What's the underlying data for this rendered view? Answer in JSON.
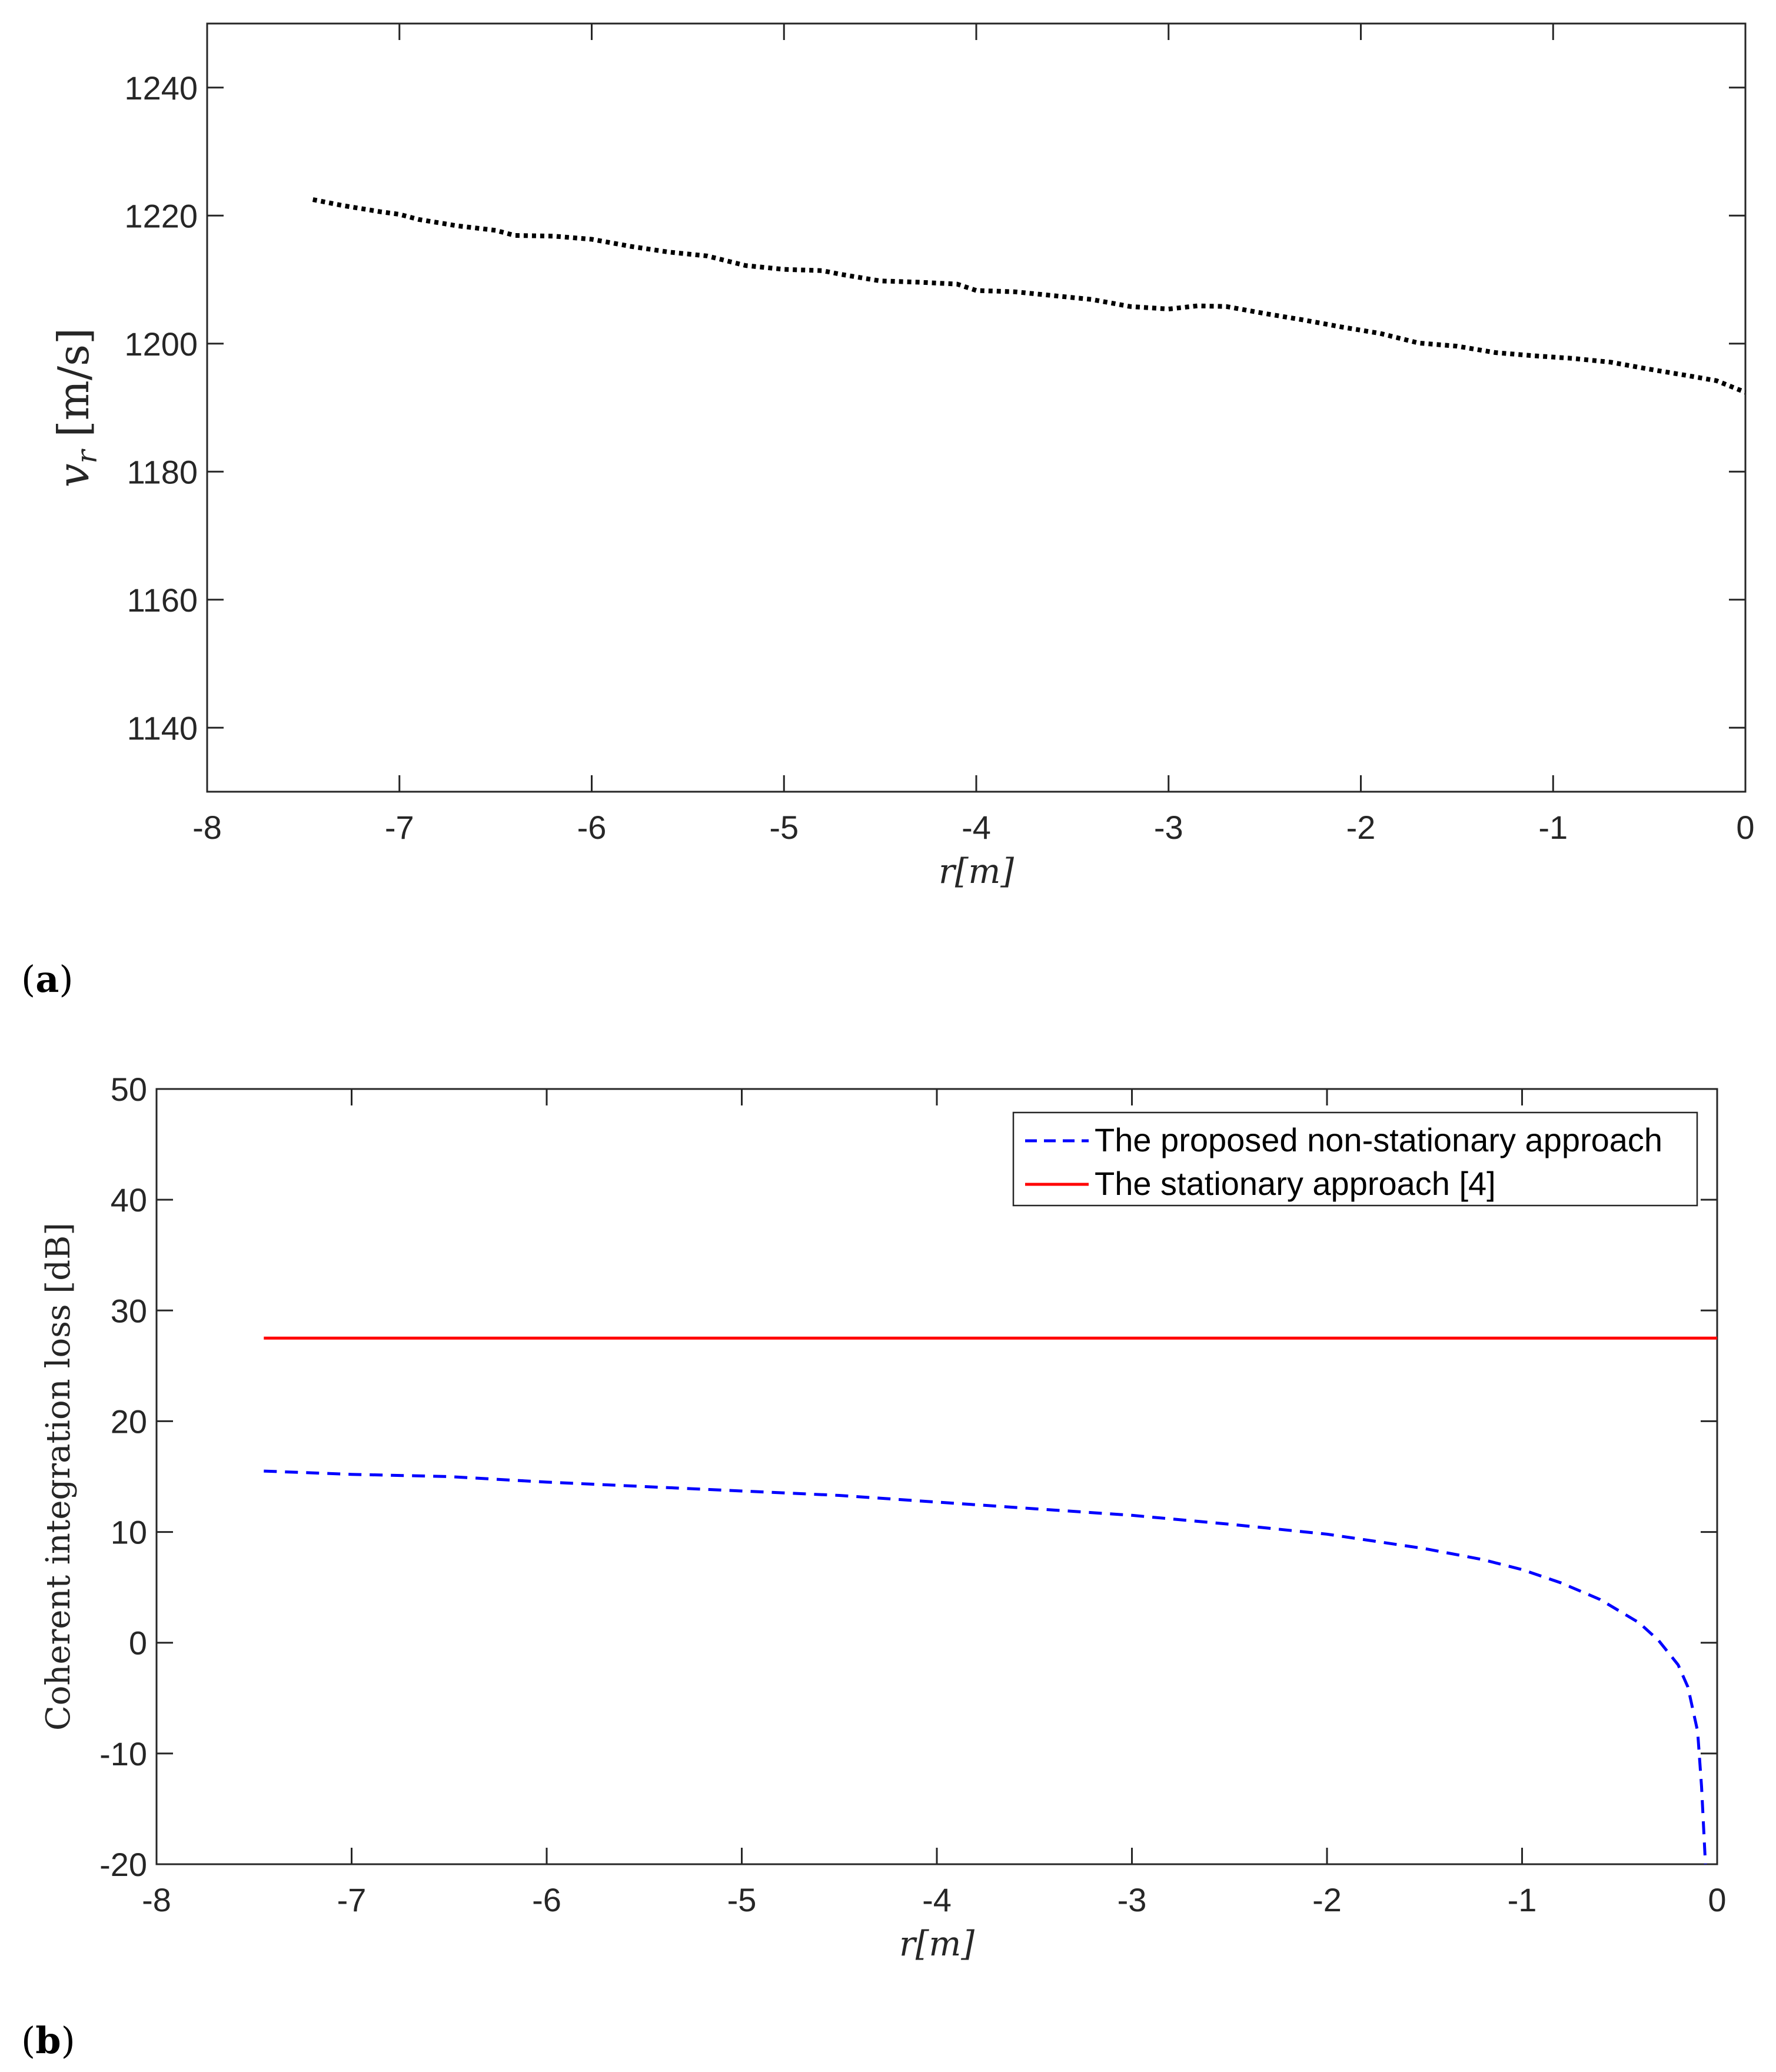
{
  "colors": {
    "axis": "#262626",
    "dotted": "#000000",
    "dashed": "#0000ff",
    "solid": "#ff0000"
  },
  "chart_data": [
    {
      "type": "line",
      "panel_label_open": "(",
      "panel_label_letter": "a",
      "panel_label_close": ")",
      "xlabel": "r[m]",
      "ylabel": "v_r [m/s]",
      "ylabel_var": "v",
      "ylabel_sub": "r",
      "ylabel_unit": "[m/s]",
      "xlim": [
        -8,
        0
      ],
      "ylim": [
        1130,
        1250
      ],
      "xticks": [
        -8,
        -7,
        -6,
        -5,
        -4,
        -3,
        -2,
        -1,
        0
      ],
      "xtick_labels": [
        "-8",
        "-7",
        "-6",
        "-5",
        "-4",
        "-3",
        "-2",
        "-1",
        "0"
      ],
      "yticks": [
        1140,
        1160,
        1180,
        1200,
        1220,
        1240
      ],
      "ytick_labels": [
        "1140",
        "1160",
        "1180",
        "1200",
        "1220",
        "1240"
      ],
      "grid": false,
      "series": [
        {
          "name": "v_r",
          "style": "dotted",
          "color": "#000000",
          "x": [
            -7.45,
            -7.3,
            -7.1,
            -7.0,
            -6.9,
            -6.7,
            -6.5,
            -6.4,
            -6.2,
            -6.0,
            -5.8,
            -5.6,
            -5.4,
            -5.2,
            -5.0,
            -4.8,
            -4.7,
            -4.5,
            -4.3,
            -4.1,
            -4.0,
            -3.8,
            -3.6,
            -3.4,
            -3.2,
            -3.0,
            -2.85,
            -2.7,
            -2.5,
            -2.3,
            -2.1,
            -1.9,
            -1.7,
            -1.5,
            -1.3,
            -1.1,
            -0.9,
            -0.7,
            -0.5,
            -0.3,
            -0.15,
            0.0
          ],
          "y": [
            1222.5,
            1221.6,
            1220.6,
            1220.2,
            1219.4,
            1218.4,
            1217.7,
            1216.9,
            1216.8,
            1216.3,
            1215.2,
            1214.3,
            1213.7,
            1212.2,
            1211.6,
            1211.4,
            1210.8,
            1209.8,
            1209.6,
            1209.3,
            1208.3,
            1208.1,
            1207.5,
            1206.9,
            1205.8,
            1205.4,
            1205.9,
            1205.8,
            1204.7,
            1203.7,
            1202.6,
            1201.6,
            1200.1,
            1199.6,
            1198.6,
            1198.1,
            1197.7,
            1197.1,
            1196.0,
            1195.0,
            1194.2,
            1192.4
          ]
        }
      ]
    },
    {
      "type": "line",
      "panel_label_open": "(",
      "panel_label_letter": "b",
      "panel_label_close": ")",
      "xlabel": "r[m]",
      "ylabel": "Coherent integration loss [dB]",
      "xlim": [
        -8,
        0
      ],
      "ylim": [
        -20,
        50
      ],
      "xticks": [
        -8,
        -7,
        -6,
        -5,
        -4,
        -3,
        -2,
        -1,
        0
      ],
      "xtick_labels": [
        "-8",
        "-7",
        "-6",
        "-5",
        "-4",
        "-3",
        "-2",
        "-1",
        "0"
      ],
      "yticks": [
        -20,
        -10,
        0,
        10,
        20,
        30,
        40,
        50
      ],
      "ytick_labels": [
        "-20",
        "-10",
        "0",
        "10",
        "20",
        "30",
        "40",
        "50"
      ],
      "grid": false,
      "legend_position": "top-right",
      "series": [
        {
          "name": "The proposed non-stationary approach",
          "style": "dashed",
          "color": "#0000ff",
          "x": [
            -7.45,
            -7.0,
            -6.5,
            -6.0,
            -5.5,
            -5.0,
            -4.5,
            -4.0,
            -3.5,
            -3.0,
            -2.5,
            -2.0,
            -1.5,
            -1.2,
            -1.0,
            -0.8,
            -0.6,
            -0.4,
            -0.3,
            -0.2,
            -0.15,
            -0.1,
            -0.08,
            -0.06
          ],
          "y": [
            15.5,
            15.2,
            15.0,
            14.5,
            14.1,
            13.7,
            13.3,
            12.7,
            12.1,
            11.5,
            10.7,
            9.8,
            8.5,
            7.5,
            6.6,
            5.4,
            3.9,
            1.8,
            0.2,
            -2.0,
            -4.0,
            -8.0,
            -13.0,
            -20.0
          ]
        },
        {
          "name": "The stationary approach [4]",
          "style": "solid",
          "color": "#ff0000",
          "x": [
            -7.45,
            0.0
          ],
          "y": [
            27.5,
            27.5
          ]
        }
      ]
    }
  ]
}
